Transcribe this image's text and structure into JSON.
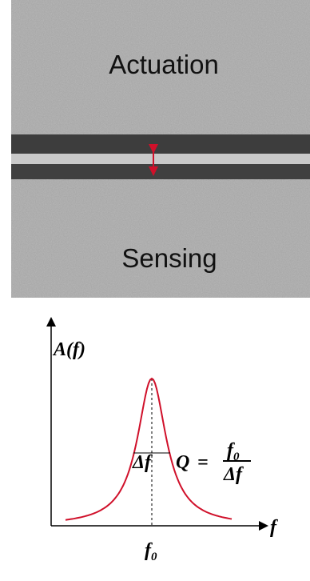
{
  "top_image": {
    "actuation_label": "Actuation",
    "sensing_label": "Sensing"
  },
  "plot": {
    "y_label": "A(f)",
    "x_label": "f",
    "peak_label": {
      "base": "f",
      "sub": "0"
    },
    "width_label": "Δf",
    "equation": {
      "lhs": "Q",
      "eq": "=",
      "numerator": {
        "base": "f",
        "sub": "0"
      },
      "denominator": "Δf"
    }
  }
}
